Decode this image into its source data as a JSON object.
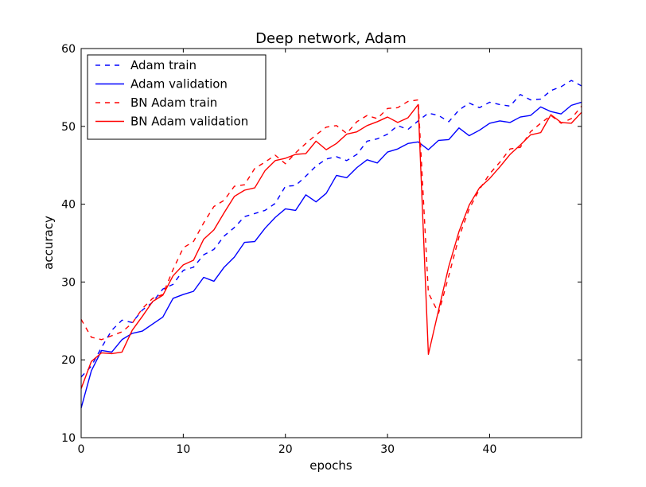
{
  "chart_data": {
    "type": "line",
    "title": "Deep network, Adam",
    "xlabel": "epochs",
    "ylabel": "accuracy",
    "xlim": [
      0,
      49
    ],
    "ylim": [
      10,
      60
    ],
    "x_ticks": [
      0,
      10,
      20,
      30,
      40
    ],
    "y_ticks": [
      10,
      20,
      30,
      40,
      50,
      60
    ],
    "grid": false,
    "legend_position": "upper-left",
    "x": [
      0,
      1,
      2,
      3,
      4,
      5,
      6,
      7,
      8,
      9,
      10,
      11,
      12,
      13,
      14,
      15,
      16,
      17,
      18,
      19,
      20,
      21,
      22,
      23,
      24,
      25,
      26,
      27,
      28,
      29,
      30,
      31,
      32,
      33,
      34,
      35,
      36,
      37,
      38,
      39,
      40,
      41,
      42,
      43,
      44,
      45,
      46,
      47,
      48,
      49
    ],
    "series": [
      {
        "name": "Adam train",
        "color": "#0000ff",
        "style": "dashed",
        "values": [
          17.8,
          19.2,
          21.6,
          23.8,
          25.1,
          24.8,
          26.4,
          27.4,
          29.1,
          29.7,
          31.5,
          31.9,
          33.5,
          34.2,
          35.9,
          37.0,
          38.4,
          38.8,
          39.2,
          40.1,
          42.3,
          42.4,
          43.6,
          44.9,
          45.8,
          46.1,
          45.6,
          46.4,
          48.1,
          48.4,
          49.0,
          50.1,
          49.6,
          50.7,
          51.7,
          51.4,
          50.6,
          52.1,
          53.0,
          52.4,
          53.1,
          52.8,
          52.6,
          54.1,
          53.4,
          53.5,
          54.6,
          55.1,
          55.9,
          55.2
        ]
      },
      {
        "name": "Adam validation",
        "color": "#0000ff",
        "style": "solid",
        "values": [
          13.8,
          18.6,
          21.2,
          21.0,
          22.6,
          23.4,
          23.7,
          24.6,
          25.5,
          27.9,
          28.4,
          28.8,
          30.6,
          30.1,
          31.9,
          33.2,
          35.1,
          35.2,
          36.9,
          38.3,
          39.4,
          39.2,
          41.2,
          40.3,
          41.4,
          43.7,
          43.4,
          44.7,
          45.7,
          45.3,
          46.7,
          47.1,
          47.8,
          48.0,
          47.0,
          48.2,
          48.3,
          49.8,
          48.8,
          49.5,
          50.4,
          50.7,
          50.5,
          51.2,
          51.4,
          52.5,
          51.9,
          51.6,
          52.7,
          53.1
        ]
      },
      {
        "name": "BN Adam train",
        "color": "#ff0000",
        "style": "dashed",
        "values": [
          25.2,
          22.9,
          22.6,
          23.1,
          23.6,
          24.7,
          26.6,
          27.9,
          28.4,
          31.6,
          34.4,
          35.2,
          37.6,
          39.7,
          40.5,
          42.3,
          42.5,
          44.6,
          45.4,
          46.3,
          45.2,
          46.6,
          47.8,
          48.9,
          49.9,
          50.1,
          49.1,
          50.6,
          51.4,
          51.0,
          52.3,
          52.4,
          53.2,
          53.4,
          28.6,
          26.0,
          30.8,
          35.8,
          39.4,
          41.9,
          43.9,
          45.4,
          47.1,
          47.3,
          49.3,
          50.4,
          51.4,
          50.4,
          51.0,
          52.6
        ]
      },
      {
        "name": "BN Adam validation",
        "color": "#ff0000",
        "style": "solid",
        "values": [
          16.3,
          19.8,
          20.9,
          20.8,
          21.0,
          23.8,
          25.6,
          27.5,
          28.3,
          30.8,
          32.2,
          32.8,
          35.5,
          36.7,
          38.9,
          41.0,
          41.8,
          42.1,
          44.3,
          45.6,
          45.9,
          46.4,
          46.5,
          48.1,
          47.0,
          47.8,
          49.0,
          49.3,
          50.1,
          50.6,
          51.2,
          50.5,
          51.1,
          52.8,
          20.7,
          26.4,
          32.0,
          36.5,
          39.9,
          42.1,
          43.3,
          44.8,
          46.4,
          47.6,
          48.9,
          49.2,
          51.5,
          50.5,
          50.4,
          51.8
        ]
      }
    ]
  }
}
